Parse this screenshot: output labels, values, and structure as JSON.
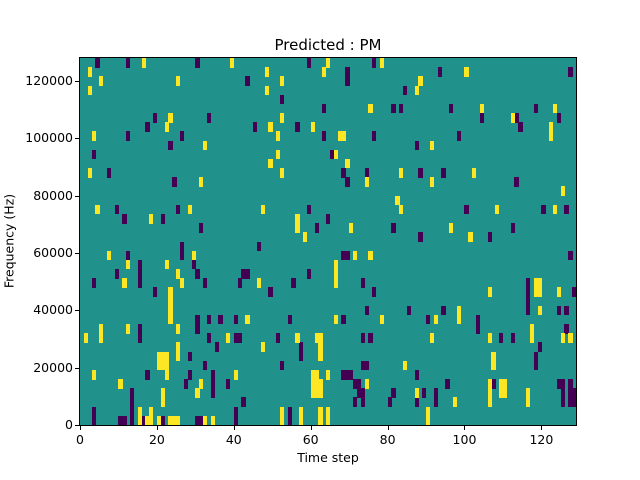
{
  "title": "Predicted : PM",
  "chart_data": {
    "type": "heatmap",
    "title": "Predicted : PM",
    "xlabel": "Time step",
    "ylabel": "Frequency (Hz)",
    "x_range": [
      0,
      129
    ],
    "y_range": [
      0,
      128000
    ],
    "grid_cols": 129,
    "grid_rows": 40,
    "x_ticks": [
      0,
      20,
      40,
      60,
      80,
      100,
      120
    ],
    "y_ticks": [
      0,
      20000,
      40000,
      60000,
      80000,
      100000,
      120000
    ],
    "colormap": "viridis",
    "colors": {
      "background_value": "#21918c",
      "high_value": "#fde725",
      "low_value": "#440154",
      "text": "#000000",
      "figure_background": "#ffffff"
    },
    "cells_yellow": [
      [
        16,
        39
      ],
      [
        39,
        39
      ],
      [
        64,
        39
      ],
      [
        78,
        39
      ],
      [
        2,
        38
      ],
      [
        48,
        38
      ],
      [
        63,
        38
      ],
      [
        100,
        38
      ],
      [
        5,
        37
      ],
      [
        25,
        37
      ],
      [
        52,
        37
      ],
      [
        88,
        37
      ],
      [
        2,
        36
      ],
      [
        48,
        36
      ],
      [
        87,
        36
      ],
      [
        75,
        34
      ],
      [
        104,
        34
      ],
      [
        123,
        34
      ],
      [
        23,
        33
      ],
      [
        52,
        33
      ],
      [
        112,
        33
      ],
      [
        22,
        32
      ],
      [
        49,
        32
      ],
      [
        60,
        32
      ],
      [
        122,
        32
      ],
      [
        3,
        31
      ],
      [
        51,
        31
      ],
      [
        67,
        31
      ],
      [
        68,
        31
      ],
      [
        122,
        31
      ],
      [
        32,
        30
      ],
      [
        91,
        30
      ],
      [
        51,
        29
      ],
      [
        66,
        29
      ],
      [
        49,
        28
      ],
      [
        69,
        28
      ],
      [
        2,
        27
      ],
      [
        52,
        27
      ],
      [
        83,
        27
      ],
      [
        102,
        27
      ],
      [
        31,
        26
      ],
      [
        74,
        26
      ],
      [
        91,
        26
      ],
      [
        125,
        25
      ],
      [
        82,
        24
      ],
      [
        4,
        23
      ],
      [
        28,
        23
      ],
      [
        47,
        23
      ],
      [
        83,
        23
      ],
      [
        108,
        23
      ],
      [
        123,
        23
      ],
      [
        18,
        22
      ],
      [
        56,
        22
      ],
      [
        56,
        21
      ],
      [
        70,
        21
      ],
      [
        96,
        21
      ],
      [
        58,
        20
      ],
      [
        101,
        20
      ],
      [
        7,
        18
      ],
      [
        29,
        18
      ],
      [
        71,
        18
      ],
      [
        75,
        18
      ],
      [
        12,
        17
      ],
      [
        22,
        17
      ],
      [
        66,
        17
      ],
      [
        25,
        16
      ],
      [
        66,
        16
      ],
      [
        11,
        15
      ],
      [
        26,
        15
      ],
      [
        46,
        15
      ],
      [
        66,
        15
      ],
      [
        118,
        15
      ],
      [
        119,
        15
      ],
      [
        23,
        14
      ],
      [
        106,
        14
      ],
      [
        118,
        14
      ],
      [
        119,
        14
      ],
      [
        124,
        14
      ],
      [
        23,
        13
      ],
      [
        23,
        12
      ],
      [
        98,
        12
      ],
      [
        119,
        12
      ],
      [
        23,
        11
      ],
      [
        43,
        11
      ],
      [
        66,
        11
      ],
      [
        78,
        11
      ],
      [
        92,
        11
      ],
      [
        98,
        11
      ],
      [
        5,
        10
      ],
      [
        12,
        10
      ],
      [
        25,
        10
      ],
      [
        117,
        10
      ],
      [
        1,
        9
      ],
      [
        5,
        9
      ],
      [
        38,
        9
      ],
      [
        56,
        9
      ],
      [
        61,
        9
      ],
      [
        62,
        9
      ],
      [
        91,
        9
      ],
      [
        106,
        9
      ],
      [
        117,
        9
      ],
      [
        125,
        9
      ],
      [
        127,
        9
      ],
      [
        25,
        8
      ],
      [
        47,
        8
      ],
      [
        62,
        8
      ],
      [
        20,
        7
      ],
      [
        21,
        7
      ],
      [
        22,
        7
      ],
      [
        25,
        7
      ],
      [
        62,
        7
      ],
      [
        107,
        7
      ],
      [
        20,
        6
      ],
      [
        21,
        6
      ],
      [
        22,
        6
      ],
      [
        84,
        6
      ],
      [
        107,
        6
      ],
      [
        3,
        5
      ],
      [
        22,
        5
      ],
      [
        40,
        5
      ],
      [
        60,
        5
      ],
      [
        61,
        5
      ],
      [
        64,
        5
      ],
      [
        10,
        4
      ],
      [
        31,
        4
      ],
      [
        60,
        4
      ],
      [
        61,
        4
      ],
      [
        62,
        4
      ],
      [
        74,
        4
      ],
      [
        106,
        4
      ],
      [
        109,
        4
      ],
      [
        110,
        4
      ],
      [
        21,
        3
      ],
      [
        30,
        3
      ],
      [
        60,
        3
      ],
      [
        61,
        3
      ],
      [
        62,
        3
      ],
      [
        87,
        3
      ],
      [
        106,
        3
      ],
      [
        109,
        3
      ],
      [
        110,
        3
      ],
      [
        116,
        3
      ],
      [
        21,
        2
      ],
      [
        97,
        2
      ],
      [
        106,
        2
      ],
      [
        116,
        2
      ],
      [
        15,
        1
      ],
      [
        18,
        1
      ],
      [
        52,
        1
      ],
      [
        57,
        1
      ],
      [
        62,
        1
      ],
      [
        64,
        1
      ],
      [
        90,
        1
      ],
      [
        15,
        0
      ],
      [
        17,
        0
      ],
      [
        18,
        0
      ],
      [
        20,
        0
      ],
      [
        23,
        0
      ],
      [
        24,
        0
      ],
      [
        25,
        0
      ],
      [
        32,
        0
      ],
      [
        34,
        0
      ],
      [
        52,
        0
      ],
      [
        57,
        0
      ],
      [
        62,
        0
      ],
      [
        64,
        0
      ],
      [
        90,
        0
      ]
    ],
    "cells_dark": [
      [
        4,
        39
      ],
      [
        12,
        39
      ],
      [
        30,
        39
      ],
      [
        59,
        39
      ],
      [
        76,
        39
      ],
      [
        69,
        38
      ],
      [
        93,
        38
      ],
      [
        127,
        38
      ],
      [
        43,
        37
      ],
      [
        69,
        37
      ],
      [
        84,
        36
      ],
      [
        52,
        35
      ],
      [
        63,
        34
      ],
      [
        81,
        34
      ],
      [
        83,
        34
      ],
      [
        96,
        34
      ],
      [
        118,
        34
      ],
      [
        19,
        33
      ],
      [
        33,
        33
      ],
      [
        104,
        33
      ],
      [
        113,
        33
      ],
      [
        124,
        33
      ],
      [
        17,
        32
      ],
      [
        45,
        32
      ],
      [
        56,
        32
      ],
      [
        114,
        32
      ],
      [
        12,
        31
      ],
      [
        26,
        31
      ],
      [
        63,
        31
      ],
      [
        76,
        31
      ],
      [
        98,
        31
      ],
      [
        23,
        30
      ],
      [
        87,
        30
      ],
      [
        3,
        29
      ],
      [
        65,
        29
      ],
      [
        7,
        27
      ],
      [
        68,
        27
      ],
      [
        74,
        27
      ],
      [
        88,
        27
      ],
      [
        94,
        27
      ],
      [
        24,
        26
      ],
      [
        69,
        26
      ],
      [
        113,
        26
      ],
      [
        9,
        23
      ],
      [
        25,
        23
      ],
      [
        59,
        23
      ],
      [
        100,
        23
      ],
      [
        120,
        23
      ],
      [
        126,
        23
      ],
      [
        11,
        22
      ],
      [
        21,
        22
      ],
      [
        64,
        22
      ],
      [
        31,
        21
      ],
      [
        61,
        21
      ],
      [
        81,
        21
      ],
      [
        112,
        21
      ],
      [
        88,
        20
      ],
      [
        106,
        20
      ],
      [
        26,
        19
      ],
      [
        46,
        19
      ],
      [
        12,
        18
      ],
      [
        26,
        18
      ],
      [
        68,
        18
      ],
      [
        69,
        18
      ],
      [
        127,
        18
      ],
      [
        15,
        17
      ],
      [
        29,
        17
      ],
      [
        9,
        16
      ],
      [
        15,
        16
      ],
      [
        30,
        16
      ],
      [
        42,
        16
      ],
      [
        43,
        16
      ],
      [
        59,
        16
      ],
      [
        3,
        15
      ],
      [
        15,
        15
      ],
      [
        32,
        15
      ],
      [
        41,
        15
      ],
      [
        55,
        15
      ],
      [
        73,
        15
      ],
      [
        116,
        15
      ],
      [
        19,
        14
      ],
      [
        49,
        14
      ],
      [
        76,
        14
      ],
      [
        116,
        14
      ],
      [
        128,
        14
      ],
      [
        116,
        13
      ],
      [
        74,
        12
      ],
      [
        85,
        12
      ],
      [
        94,
        12
      ],
      [
        116,
        12
      ],
      [
        124,
        12
      ],
      [
        126,
        12
      ],
      [
        30,
        11
      ],
      [
        33,
        11
      ],
      [
        36,
        11
      ],
      [
        40,
        11
      ],
      [
        54,
        11
      ],
      [
        68,
        11
      ],
      [
        90,
        11
      ],
      [
        103,
        11
      ],
      [
        15,
        10
      ],
      [
        30,
        10
      ],
      [
        103,
        10
      ],
      [
        126,
        10
      ],
      [
        15,
        9
      ],
      [
        33,
        9
      ],
      [
        40,
        9
      ],
      [
        41,
        9
      ],
      [
        51,
        9
      ],
      [
        73,
        9
      ],
      [
        75,
        9
      ],
      [
        109,
        9
      ],
      [
        112,
        9
      ],
      [
        35,
        8
      ],
      [
        57,
        8
      ],
      [
        119,
        8
      ],
      [
        28,
        7
      ],
      [
        57,
        7
      ],
      [
        118,
        7
      ],
      [
        32,
        6
      ],
      [
        52,
        6
      ],
      [
        73,
        6
      ],
      [
        74,
        6
      ],
      [
        118,
        6
      ],
      [
        17,
        5
      ],
      [
        28,
        5
      ],
      [
        34,
        5
      ],
      [
        68,
        5
      ],
      [
        69,
        5
      ],
      [
        70,
        5
      ],
      [
        87,
        5
      ],
      [
        27,
        4
      ],
      [
        34,
        4
      ],
      [
        38,
        4
      ],
      [
        71,
        4
      ],
      [
        72,
        4
      ],
      [
        95,
        4
      ],
      [
        107,
        4
      ],
      [
        124,
        4
      ],
      [
        125,
        4
      ],
      [
        127,
        4
      ],
      [
        13,
        3
      ],
      [
        34,
        3
      ],
      [
        72,
        3
      ],
      [
        73,
        3
      ],
      [
        81,
        3
      ],
      [
        89,
        3
      ],
      [
        92,
        3
      ],
      [
        125,
        3
      ],
      [
        127,
        3
      ],
      [
        128,
        3
      ],
      [
        13,
        2
      ],
      [
        42,
        2
      ],
      [
        71,
        2
      ],
      [
        73,
        2
      ],
      [
        80,
        2
      ],
      [
        87,
        2
      ],
      [
        92,
        2
      ],
      [
        125,
        2
      ],
      [
        127,
        2
      ],
      [
        128,
        2
      ],
      [
        3,
        1
      ],
      [
        13,
        1
      ],
      [
        40,
        1
      ],
      [
        54,
        1
      ],
      [
        3,
        0
      ],
      [
        10,
        0
      ],
      [
        11,
        0
      ],
      [
        13,
        0
      ],
      [
        16,
        0
      ],
      [
        21,
        0
      ],
      [
        30,
        0
      ],
      [
        31,
        0
      ],
      [
        40,
        0
      ],
      [
        54,
        0
      ]
    ]
  }
}
